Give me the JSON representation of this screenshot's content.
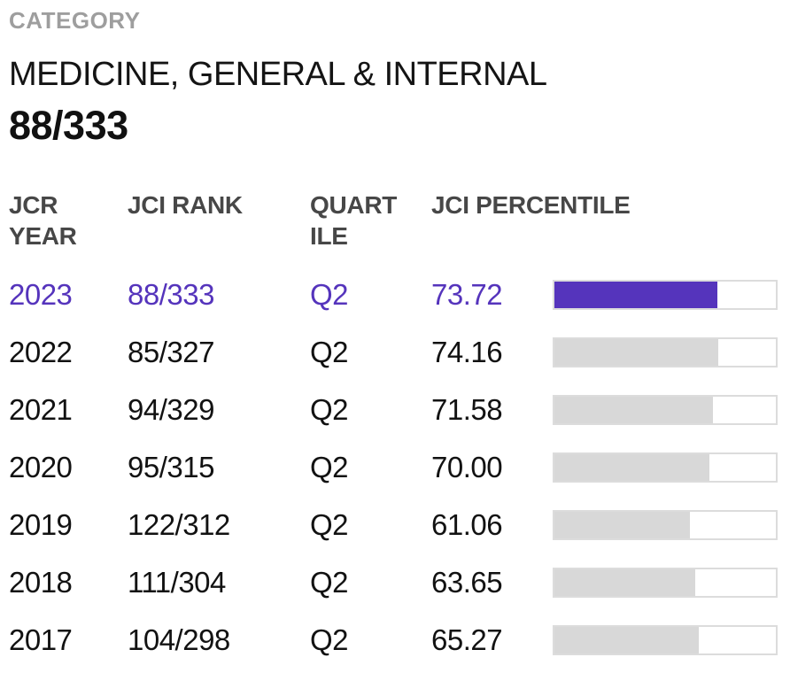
{
  "colors": {
    "accent_purple": "#5534BC",
    "bar_gray": "#D8D8D8",
    "bar_border": "#DCDCDC",
    "header_text": "#474747",
    "label_gray": "#9E9E9E",
    "body_text": "#121212"
  },
  "category_section": {
    "label": "CATEGORY",
    "name": "MEDICINE, GENERAL & INTERNAL",
    "rank": "88/333"
  },
  "table": {
    "columns": [
      "JCR YEAR",
      "JCI RANK",
      "QUARTILE",
      "JCI PERCENTILE"
    ],
    "rows": [
      {
        "year": "2023",
        "rank": "88/333",
        "quartile": "Q2",
        "percentile": "73.72",
        "bar_percent": 73.72,
        "highlighted": true
      },
      {
        "year": "2022",
        "rank": "85/327",
        "quartile": "Q2",
        "percentile": "74.16",
        "bar_percent": 74.16,
        "highlighted": false
      },
      {
        "year": "2021",
        "rank": "94/329",
        "quartile": "Q2",
        "percentile": "71.58",
        "bar_percent": 71.58,
        "highlighted": false
      },
      {
        "year": "2020",
        "rank": "95/315",
        "quartile": "Q2",
        "percentile": "70.00",
        "bar_percent": 70.0,
        "highlighted": false
      },
      {
        "year": "2019",
        "rank": "122/312",
        "quartile": "Q2",
        "percentile": "61.06",
        "bar_percent": 61.06,
        "highlighted": false
      },
      {
        "year": "2018",
        "rank": "111/304",
        "quartile": "Q2",
        "percentile": "63.65",
        "bar_percent": 63.65,
        "highlighted": false
      },
      {
        "year": "2017",
        "rank": "104/298",
        "quartile": "Q2",
        "percentile": "65.27",
        "bar_percent": 65.27,
        "highlighted": false
      }
    ]
  }
}
